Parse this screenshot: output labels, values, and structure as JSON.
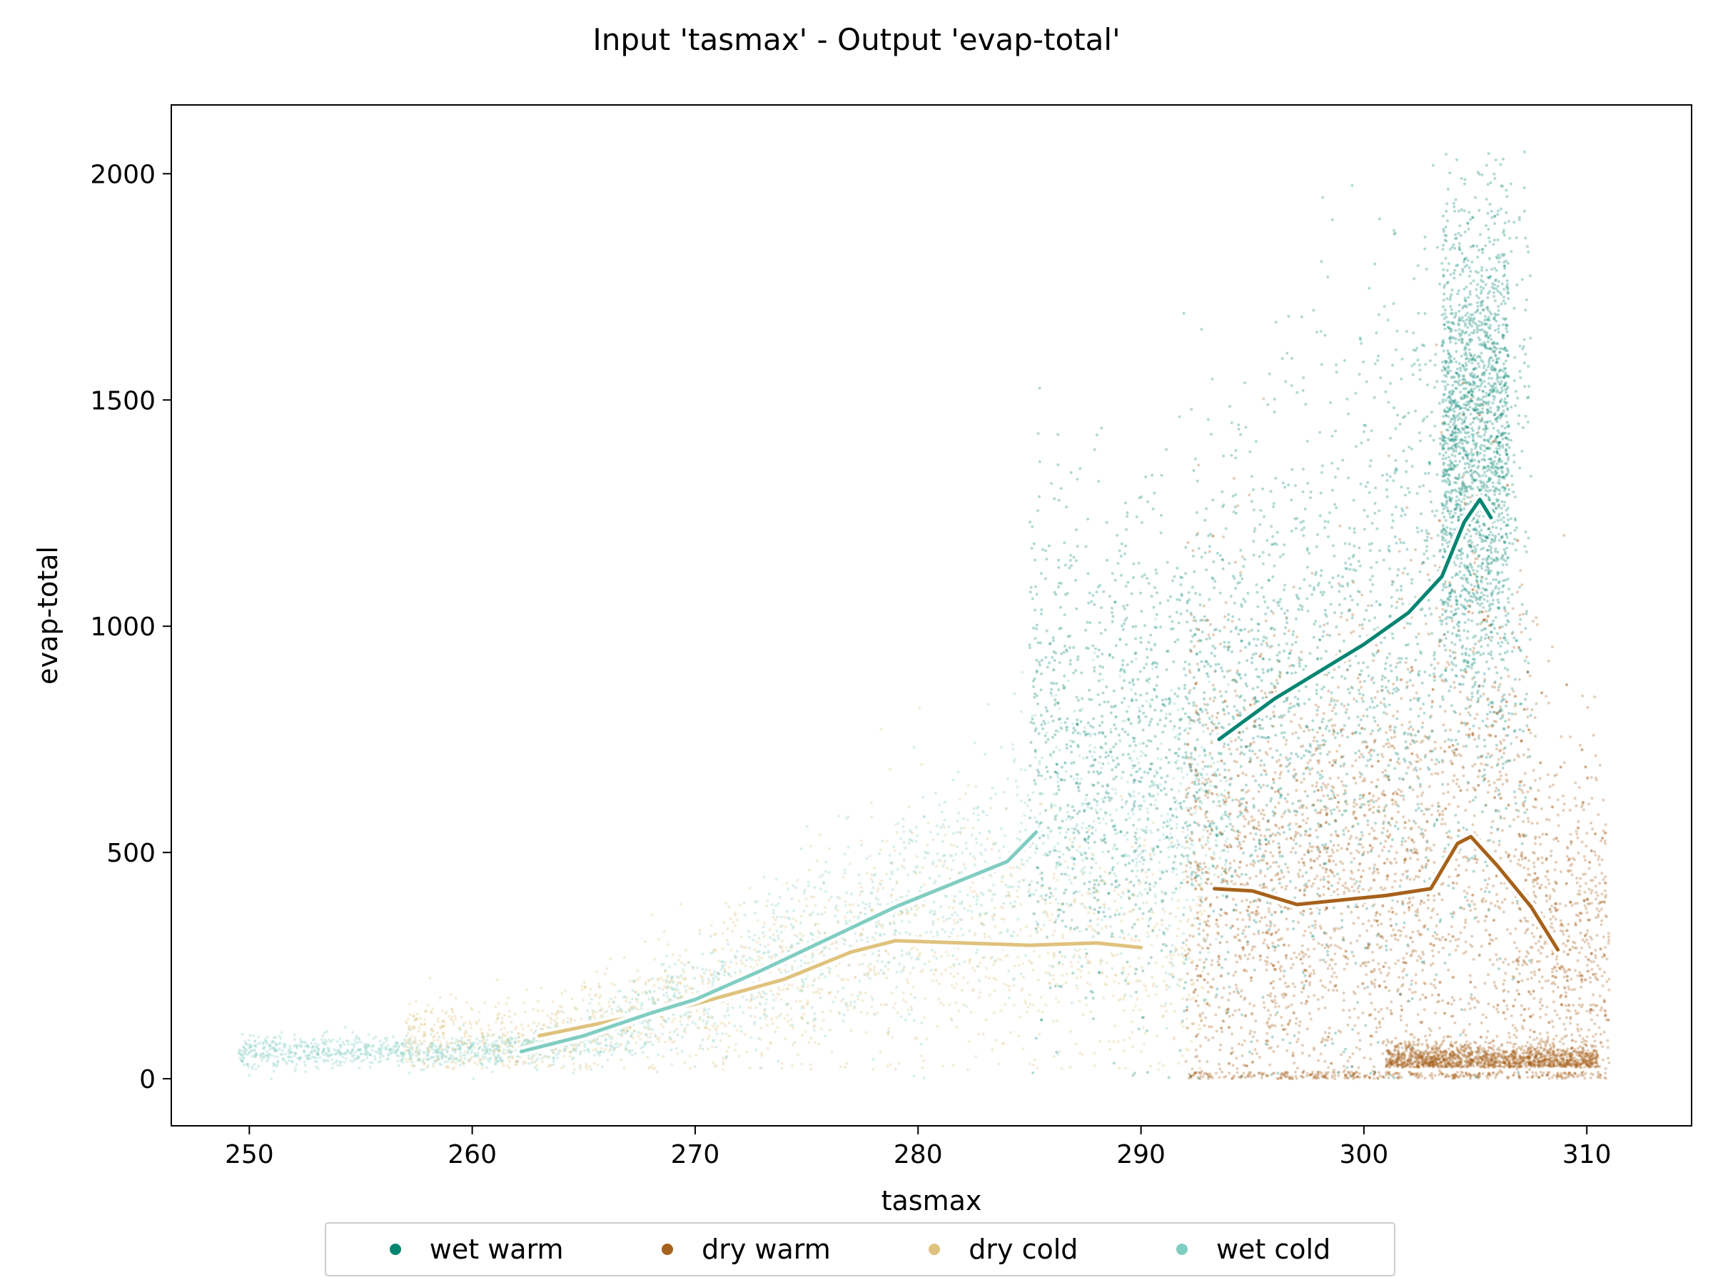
{
  "chart_data": {
    "type": "scatter",
    "title": "Input 'tasmax' - Output 'evap-total'",
    "xlabel": "tasmax",
    "ylabel": "evap-total",
    "xlim": [
      246.5,
      314.7
    ],
    "ylim": [
      -104,
      2152
    ],
    "xticks": [
      250,
      260,
      270,
      280,
      290,
      300,
      310
    ],
    "yticks": [
      0,
      500,
      1000,
      1500,
      2000
    ],
    "grid": false,
    "legend_position": "bottom-center, below axes",
    "series": [
      {
        "name": "wet warm",
        "color": "#018571",
        "trend": [
          [
            293.5,
            750
          ],
          [
            296,
            840
          ],
          [
            298,
            900
          ],
          [
            300,
            960
          ],
          [
            302,
            1030
          ],
          [
            303.5,
            1110
          ],
          [
            304.5,
            1230
          ],
          [
            305.2,
            1280
          ],
          [
            305.7,
            1240
          ]
        ]
      },
      {
        "name": "dry warm",
        "color": "#a6611a",
        "trend": [
          [
            293.3,
            420
          ],
          [
            295,
            415
          ],
          [
            297,
            385
          ],
          [
            299,
            395
          ],
          [
            301,
            405
          ],
          [
            303,
            420
          ],
          [
            304.2,
            520
          ],
          [
            304.8,
            535
          ],
          [
            306,
            470
          ],
          [
            307.5,
            380
          ],
          [
            308.7,
            285
          ]
        ]
      },
      {
        "name": "dry cold",
        "color": "#dfc27d",
        "trend": [
          [
            263,
            95
          ],
          [
            266,
            125
          ],
          [
            270,
            165
          ],
          [
            274,
            220
          ],
          [
            277,
            280
          ],
          [
            279,
            305
          ],
          [
            282,
            300
          ],
          [
            285,
            295
          ],
          [
            288,
            300
          ],
          [
            290,
            290
          ]
        ]
      },
      {
        "name": "wet cold",
        "color": "#80cdc1",
        "trend": [
          [
            262.2,
            60
          ],
          [
            265,
            95
          ],
          [
            268,
            145
          ],
          [
            270,
            175
          ],
          [
            273,
            240
          ],
          [
            276,
            310
          ],
          [
            279,
            380
          ],
          [
            282,
            440
          ],
          [
            284,
            480
          ],
          [
            285.3,
            545
          ]
        ]
      }
    ],
    "clouds": [
      {
        "series": "wet cold",
        "n": 2600,
        "xmin": 249.5,
        "xmax": 294,
        "center": "trend",
        "spread": 0.3,
        "floor": 0
      },
      {
        "series": "dry cold",
        "n": 1800,
        "xmin": 257,
        "xmax": 293,
        "center": "trend",
        "spread": 0.45,
        "floor": 20
      },
      {
        "series": "dry warm",
        "n": 3800,
        "xmin": 292,
        "xmax": 311,
        "center": "trend",
        "spread": 0.75,
        "floor": 0
      },
      {
        "series": "wet warm",
        "n": 3000,
        "xmin": 285,
        "xmax": 307.5,
        "center": "trend",
        "spread": 0.38,
        "floor": 0
      },
      {
        "series": "wet warm",
        "n": 1800,
        "xmin": 303.5,
        "xmax": 306.5,
        "center": "peak",
        "ycenter": 1400,
        "yspread": 260,
        "floor": 0
      },
      {
        "series": "dry warm",
        "n": 1500,
        "xmin": 301,
        "xmax": 310.5,
        "center": "flat",
        "ycenter": 25,
        "yspread": 25,
        "floor": 0
      }
    ]
  }
}
